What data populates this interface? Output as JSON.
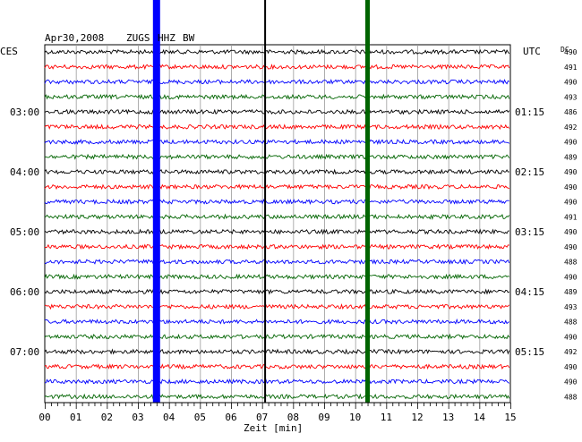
{
  "header": {
    "date": "Apr30,2008",
    "station": "ZUGS",
    "channel": "HHZ",
    "network": "BW"
  },
  "left_timezone": "CES",
  "right_timezone": "UTC",
  "dc_label": "DC",
  "chart_data": {
    "type": "line",
    "xlabel": "Zeit [min]",
    "xlim": [
      0,
      15
    ],
    "x_ticks": [
      "00",
      "01",
      "02",
      "03",
      "04",
      "05",
      "06",
      "07",
      "08",
      "09",
      "10",
      "11",
      "12",
      "13",
      "14",
      "15"
    ],
    "left_hour_labels": [
      "03:00",
      "04:00",
      "05:00",
      "06:00",
      "07:00"
    ],
    "right_hour_labels": [
      "01:15",
      "02:15",
      "03:15",
      "04:15",
      "05:15"
    ],
    "trace_colors": [
      "#000000",
      "#ff0000",
      "#0000ff",
      "#006400"
    ],
    "dc_values": [
      "490",
      "491",
      "490",
      "493",
      "486",
      "492",
      "490",
      "489",
      "490",
      "490",
      "490",
      "491",
      "490",
      "490",
      "488",
      "490",
      "489",
      "493",
      "488",
      "490",
      "492",
      "490",
      "490",
      "488"
    ],
    "markers": [
      {
        "minute": 3.6,
        "color": "#0000ff"
      },
      {
        "minute": 7.1,
        "color": "#000000"
      },
      {
        "minute": 10.4,
        "color": "#006400"
      }
    ],
    "grid": true
  }
}
